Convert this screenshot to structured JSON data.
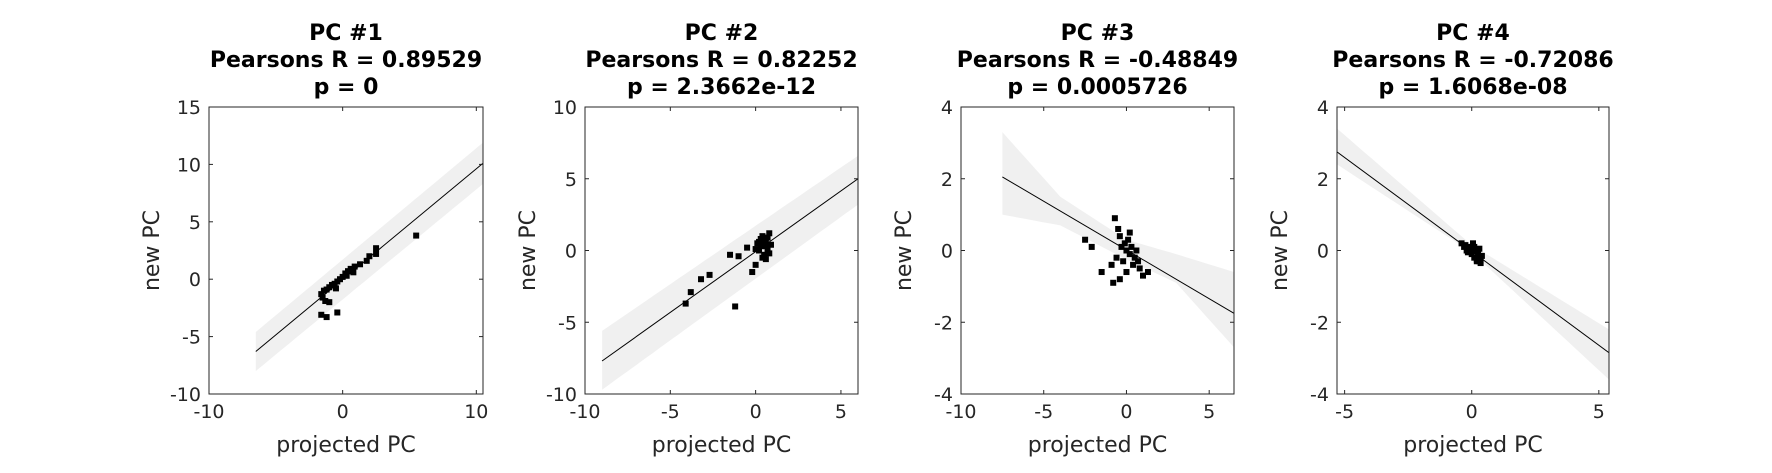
{
  "chart_data": [
    {
      "type": "scatter",
      "title_lines": [
        "PC #1",
        "Pearsons R = 0.89529",
        "p = 0"
      ],
      "xlabel": "projected PC",
      "ylabel": "new PC",
      "xlim": [
        -10,
        10.5
      ],
      "ylim": [
        -10,
        15
      ],
      "xticks": [
        -10,
        0,
        10
      ],
      "yticks": [
        -10,
        -5,
        0,
        5,
        10,
        15
      ],
      "fit": {
        "x": [
          -6.5,
          10.5
        ],
        "y": [
          -6.3,
          10.1
        ]
      },
      "ci_band": {
        "x": [
          -6.5,
          10.5
        ],
        "lower": [
          -8.0,
          8.3
        ],
        "upper": [
          -4.6,
          11.9
        ]
      },
      "points": [
        [
          -1.6,
          -1.3
        ],
        [
          -1.4,
          -1.0
        ],
        [
          -1.2,
          -0.9
        ],
        [
          -1.0,
          -0.7
        ],
        [
          -0.8,
          -0.5
        ],
        [
          -0.6,
          -0.4
        ],
        [
          -0.4,
          -0.2
        ],
        [
          -0.2,
          0.0
        ],
        [
          0.0,
          0.2
        ],
        [
          0.2,
          0.5
        ],
        [
          0.4,
          0.7
        ],
        [
          0.6,
          0.9
        ],
        [
          0.9,
          1.1
        ],
        [
          1.3,
          1.3
        ],
        [
          1.8,
          1.6
        ],
        [
          2.0,
          2.0
        ],
        [
          2.5,
          2.7
        ],
        [
          2.5,
          2.2
        ],
        [
          -1.6,
          -3.1
        ],
        [
          -1.2,
          -3.3
        ],
        [
          -0.4,
          -2.9
        ],
        [
          -1.0,
          -2.0
        ],
        [
          -1.5,
          -1.6
        ],
        [
          -1.3,
          -1.9
        ],
        [
          5.5,
          3.8
        ],
        [
          -0.5,
          -0.8
        ],
        [
          0.3,
          0.3
        ],
        [
          0.8,
          0.6
        ]
      ]
    },
    {
      "type": "scatter",
      "title_lines": [
        "PC #2",
        "Pearsons R = 0.82252",
        "p = 2.3662e-12"
      ],
      "xlabel": "projected PC",
      "ylabel": "new PC",
      "xlim": [
        -10,
        6
      ],
      "ylim": [
        -10,
        10
      ],
      "xticks": [
        -10,
        -5,
        0,
        5
      ],
      "yticks": [
        -10,
        -5,
        0,
        5,
        10
      ],
      "fit": {
        "x": [
          -9,
          6
        ],
        "y": [
          -7.7,
          5.0
        ]
      },
      "ci_band": {
        "x": [
          -9,
          6
        ],
        "lower": [
          -9.7,
          3.2
        ],
        "upper": [
          -5.6,
          6.6
        ]
      },
      "points": [
        [
          -4.1,
          -3.7
        ],
        [
          -3.8,
          -2.9
        ],
        [
          -3.2,
          -2.0
        ],
        [
          -2.7,
          -1.7
        ],
        [
          -1.5,
          -0.3
        ],
        [
          -1.0,
          -0.4
        ],
        [
          -1.2,
          -3.9
        ],
        [
          -0.2,
          -1.5
        ],
        [
          0.0,
          -1.0
        ],
        [
          -0.5,
          0.2
        ],
        [
          0.0,
          0.1
        ],
        [
          0.1,
          0.5
        ],
        [
          0.2,
          0.0
        ],
        [
          0.3,
          0.8
        ],
        [
          0.4,
          1.0
        ],
        [
          0.5,
          0.6
        ],
        [
          0.5,
          -0.3
        ],
        [
          0.6,
          0.3
        ],
        [
          0.6,
          -0.6
        ],
        [
          0.7,
          0.9
        ],
        [
          0.7,
          0.1
        ],
        [
          0.8,
          1.2
        ],
        [
          0.8,
          -0.2
        ],
        [
          0.4,
          -0.5
        ],
        [
          0.3,
          0.3
        ],
        [
          0.6,
          0.5
        ],
        [
          0.2,
          0.6
        ],
        [
          0.9,
          0.4
        ]
      ]
    },
    {
      "type": "scatter",
      "title_lines": [
        "PC #3",
        "Pearsons R = -0.48849",
        "p = 0.0005726"
      ],
      "xlabel": "projected PC",
      "ylabel": "new PC",
      "xlim": [
        -10,
        6.5
      ],
      "ylim": [
        -4,
        4
      ],
      "xticks": [
        -10,
        -5,
        0,
        5
      ],
      "yticks": [
        -4,
        -2,
        0,
        2,
        4
      ],
      "fit": {
        "x": [
          -7.5,
          6.5
        ],
        "y": [
          2.05,
          -1.75
        ]
      },
      "ci_band": {
        "x": [
          -7.5,
          -4.0,
          0.0,
          3.0,
          6.5
        ],
        "lower": [
          1.0,
          0.7,
          -0.25,
          -0.9,
          -2.7
        ],
        "upper": [
          3.3,
          1.5,
          0.3,
          -0.1,
          -0.6
        ]
      },
      "points": [
        [
          -2.5,
          0.3
        ],
        [
          -2.1,
          0.1
        ],
        [
          -1.5,
          -0.6
        ],
        [
          -0.8,
          -0.9
        ],
        [
          -0.7,
          0.9
        ],
        [
          -0.5,
          0.6
        ],
        [
          -0.4,
          0.4
        ],
        [
          -0.3,
          0.1
        ],
        [
          -0.2,
          -0.3
        ],
        [
          -0.1,
          0.2
        ],
        [
          0.0,
          -0.6
        ],
        [
          0.0,
          0.0
        ],
        [
          0.1,
          0.3
        ],
        [
          0.2,
          -0.1
        ],
        [
          0.3,
          0.1
        ],
        [
          0.4,
          -0.4
        ],
        [
          0.5,
          -0.2
        ],
        [
          0.6,
          0.0
        ],
        [
          0.8,
          -0.5
        ],
        [
          1.0,
          -0.7
        ],
        [
          1.3,
          -0.6
        ],
        [
          0.7,
          -0.3
        ],
        [
          -0.6,
          -0.2
        ],
        [
          -0.9,
          -0.4
        ],
        [
          0.2,
          0.5
        ],
        [
          -0.4,
          -0.8
        ]
      ]
    },
    {
      "type": "scatter",
      "title_lines": [
        "PC #4",
        "Pearsons R = -0.72086",
        "p = 1.6068e-08"
      ],
      "xlabel": "projected PC",
      "ylabel": "new PC",
      "xlim": [
        -5.3,
        5.4
      ],
      "ylim": [
        -4,
        4
      ],
      "xticks": [
        -5,
        0,
        5
      ],
      "yticks": [
        -4,
        -2,
        0,
        2,
        4
      ],
      "fit": {
        "x": [
          -5.3,
          5.4
        ],
        "y": [
          2.75,
          -2.85
        ]
      },
      "ci_band": {
        "x": [
          -5.3,
          0.0,
          5.4
        ],
        "lower": [
          2.4,
          -0.05,
          -3.6
        ],
        "upper": [
          3.4,
          0.15,
          -2.2
        ]
      },
      "points": [
        [
          -0.4,
          0.2
        ],
        [
          -0.3,
          0.1
        ],
        [
          -0.2,
          0.0
        ],
        [
          -0.1,
          0.1
        ],
        [
          0.0,
          -0.1
        ],
        [
          0.05,
          0.2
        ],
        [
          0.1,
          -0.2
        ],
        [
          0.15,
          0.0
        ],
        [
          0.2,
          -0.3
        ],
        [
          0.25,
          -0.1
        ],
        [
          0.3,
          -0.3
        ],
        [
          0.35,
          -0.2
        ],
        [
          0.4,
          -0.15
        ],
        [
          0.1,
          0.1
        ],
        [
          -0.15,
          -0.05
        ],
        [
          0.3,
          0.05
        ],
        [
          0.2,
          -0.25
        ],
        [
          0.0,
          0.05
        ],
        [
          -0.25,
          0.15
        ],
        [
          0.35,
          -0.35
        ]
      ]
    }
  ]
}
